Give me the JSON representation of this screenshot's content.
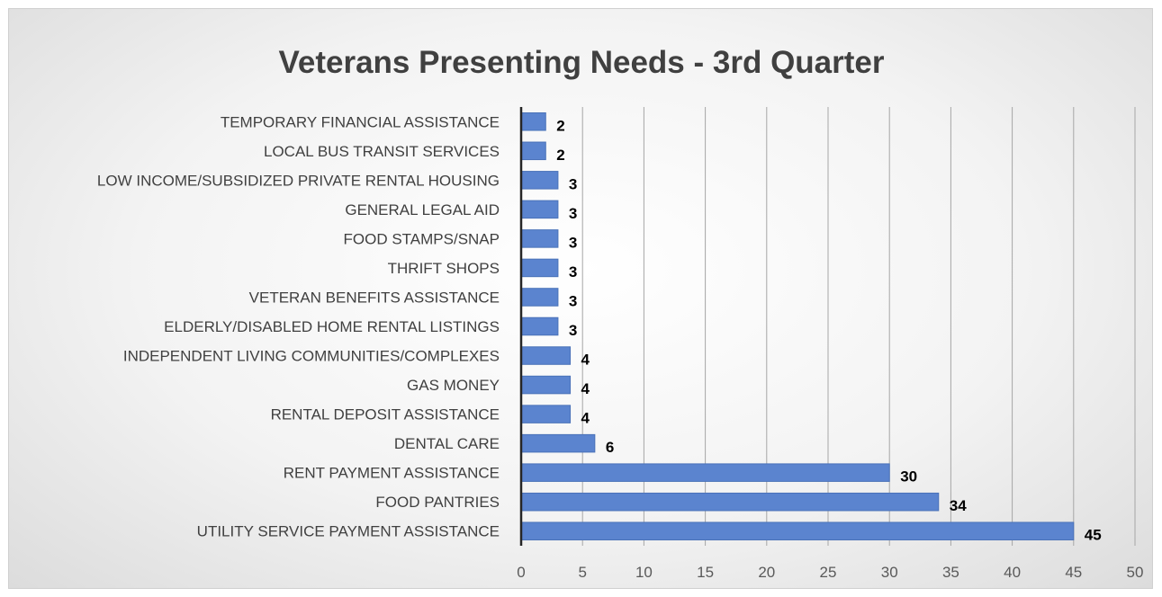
{
  "chart_data": {
    "type": "bar",
    "orientation": "horizontal",
    "title": "Veterans Presenting Needs - 3rd Quarter",
    "xlabel": "",
    "ylabel": "",
    "categories": [
      "TEMPORARY FINANCIAL ASSISTANCE",
      "LOCAL BUS TRANSIT SERVICES",
      "LOW INCOME/SUBSIDIZED PRIVATE RENTAL HOUSING",
      "GENERAL LEGAL AID",
      "FOOD STAMPS/SNAP",
      "THRIFT SHOPS",
      "VETERAN BENEFITS ASSISTANCE",
      "ELDERLY/DISABLED HOME RENTAL LISTINGS",
      "INDEPENDENT LIVING COMMUNITIES/COMPLEXES",
      "GAS MONEY",
      "RENTAL DEPOSIT ASSISTANCE",
      "DENTAL CARE",
      "RENT PAYMENT ASSISTANCE",
      "FOOD PANTRIES",
      "UTILITY SERVICE PAYMENT ASSISTANCE"
    ],
    "values": [
      2,
      2,
      3,
      3,
      3,
      3,
      3,
      3,
      4,
      4,
      4,
      6,
      30,
      34,
      45
    ],
    "xlim": [
      0,
      50
    ],
    "xticks": [
      0,
      5,
      10,
      15,
      20,
      25,
      30,
      35,
      40,
      45,
      50
    ],
    "grid": "vertical",
    "data_labels": true,
    "legend": "none",
    "colors": {
      "bar_fill": "#5b84cf",
      "bar_stroke": "#4a72b8",
      "gridline": "#a6a6a6",
      "axis": "#262626",
      "title": "#404040"
    }
  }
}
